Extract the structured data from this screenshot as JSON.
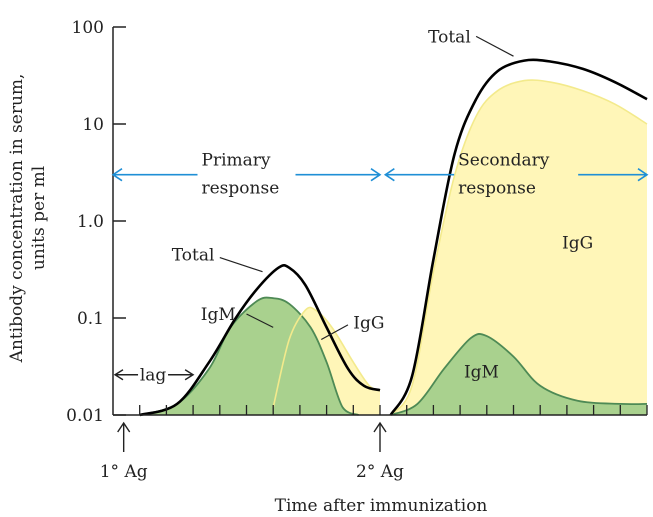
{
  "chart_data": {
    "type": "area",
    "title": "",
    "xlabel": "Time after immunization",
    "ylabel": [
      "Antibody concentration in serum,",
      "units per ml"
    ],
    "yscale": "log",
    "ylim": [
      0.01,
      100
    ],
    "y_ticks": [
      {
        "value": 100,
        "label": "100"
      },
      {
        "value": 10,
        "label": "10"
      },
      {
        "value": 1,
        "label": "1.0"
      },
      {
        "value": 0.1,
        "label": "0.1"
      },
      {
        "value": 0.01,
        "label": "0.01"
      }
    ],
    "x_range": [
      0,
      100
    ],
    "x_tick_count": 20,
    "grid": false,
    "colors": {
      "igm_fill": "#a9d18e",
      "igm_line": "#4e8a55",
      "igg_fill": "#fff6b8",
      "igg_line": "#f3ea8c",
      "total_line": "#000000",
      "arrow": "#1f8fd6",
      "axis": "#222222"
    },
    "series": [
      {
        "name": "IgM",
        "phase": "primary",
        "points": [
          [
            5,
            0.01
          ],
          [
            12,
            0.013
          ],
          [
            18,
            0.03
          ],
          [
            22,
            0.08
          ],
          [
            27,
            0.15
          ],
          [
            30,
            0.16
          ],
          [
            33,
            0.14
          ],
          [
            37,
            0.08
          ],
          [
            40,
            0.035
          ],
          [
            43,
            0.012
          ],
          [
            46,
            0.01
          ]
        ]
      },
      {
        "name": "IgG",
        "phase": "primary",
        "points": [
          [
            30,
            0.012
          ],
          [
            33,
            0.06
          ],
          [
            36,
            0.12
          ],
          [
            38,
            0.12
          ],
          [
            41,
            0.08
          ],
          [
            45,
            0.035
          ],
          [
            48,
            0.02
          ],
          [
            50,
            0.018
          ]
        ]
      },
      {
        "name": "Total",
        "phase": "primary",
        "points": [
          [
            5,
            0.01
          ],
          [
            12,
            0.013
          ],
          [
            18,
            0.035
          ],
          [
            23,
            0.1
          ],
          [
            27,
            0.2
          ],
          [
            31,
            0.33
          ],
          [
            33,
            0.33
          ],
          [
            36,
            0.22
          ],
          [
            40,
            0.08
          ],
          [
            44,
            0.03
          ],
          [
            47,
            0.02
          ],
          [
            50,
            0.018
          ]
        ]
      },
      {
        "name": "IgM",
        "phase": "secondary",
        "points": [
          [
            52,
            0.01
          ],
          [
            57,
            0.013
          ],
          [
            62,
            0.03
          ],
          [
            67,
            0.062
          ],
          [
            70,
            0.065
          ],
          [
            75,
            0.04
          ],
          [
            80,
            0.02
          ],
          [
            87,
            0.014
          ],
          [
            95,
            0.013
          ],
          [
            100,
            0.013
          ]
        ]
      },
      {
        "name": "IgG",
        "phase": "secondary",
        "points": [
          [
            52,
            0.01
          ],
          [
            56,
            0.02
          ],
          [
            60,
            0.3
          ],
          [
            64,
            3
          ],
          [
            68,
            12
          ],
          [
            72,
            22
          ],
          [
            77,
            28
          ],
          [
            82,
            27
          ],
          [
            88,
            22
          ],
          [
            94,
            16
          ],
          [
            100,
            10
          ]
        ]
      },
      {
        "name": "Total",
        "phase": "secondary",
        "points": [
          [
            52,
            0.01
          ],
          [
            56,
            0.025
          ],
          [
            60,
            0.4
          ],
          [
            64,
            5
          ],
          [
            68,
            18
          ],
          [
            72,
            35
          ],
          [
            77,
            45
          ],
          [
            82,
            44
          ],
          [
            88,
            37
          ],
          [
            94,
            27
          ],
          [
            100,
            18
          ]
        ]
      }
    ],
    "series_labels": [
      {
        "text": "IgM",
        "x": 23,
        "y": 0.11,
        "anchor": "end",
        "leader": [
          [
            25,
            0.11
          ],
          [
            30,
            0.08
          ]
        ]
      },
      {
        "text": "IgG",
        "x": 45,
        "y": 0.09,
        "anchor": "start",
        "leader": [
          [
            44,
            0.085
          ],
          [
            39,
            0.06
          ]
        ]
      },
      {
        "text": "Total",
        "x": 19,
        "y": 0.45,
        "anchor": "end",
        "leader": [
          [
            20,
            0.42
          ],
          [
            28,
            0.3
          ]
        ]
      },
      {
        "text": "Total",
        "x": 67,
        "y": 80,
        "anchor": "end",
        "leader": [
          [
            68,
            80
          ],
          [
            75,
            50
          ]
        ]
      },
      {
        "text": "IgG",
        "x": 87,
        "y": 0.6,
        "anchor": "middle",
        "leader": null
      },
      {
        "text": "IgM",
        "x": 69,
        "y": 0.028,
        "anchor": "middle",
        "leader": null
      }
    ],
    "annotations": {
      "primary": {
        "lines": [
          "Primary",
          "response"
        ],
        "x_from": 0,
        "x_to": 50,
        "y": 3
      },
      "secondary": {
        "lines": [
          "Secondary",
          "response"
        ],
        "x_from": 51,
        "x_to": 100,
        "y": 3
      },
      "lag": {
        "text": "lag",
        "x_from": 0,
        "x_to": 15,
        "y": 0.026
      }
    },
    "events": [
      {
        "label": "1° Ag",
        "x": 2
      },
      {
        "label": "2° Ag",
        "x": 50
      }
    ]
  }
}
